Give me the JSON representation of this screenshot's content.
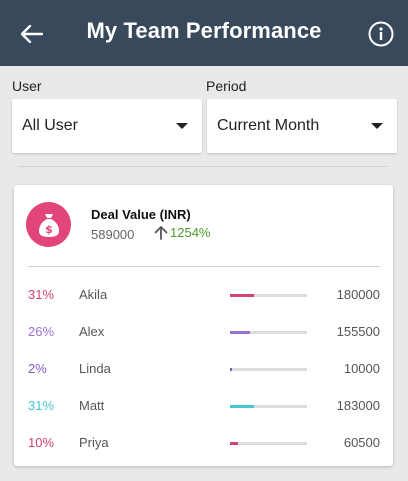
{
  "header": {
    "title": "My Team Performance",
    "back_icon": "arrow-left-icon",
    "info_icon": "info-circle-icon",
    "background": "#37495a"
  },
  "filters": {
    "user": {
      "label": "User",
      "value": "All User"
    },
    "period": {
      "label": "Period",
      "value": "Current Month"
    }
  },
  "metric": {
    "icon": "money-bag-icon",
    "icon_color": "#e1457a",
    "title": "Deal Value (INR)",
    "value": "589000",
    "change": "1254%",
    "change_direction": "up",
    "change_color": "#4b9a2a"
  },
  "team": [
    {
      "percent": "31%",
      "name": "Akila",
      "amount": "180000",
      "share": 0.31,
      "color": "#d14372"
    },
    {
      "percent": "26%",
      "name": "Alex",
      "amount": "155500",
      "share": 0.26,
      "color": "#9a6fd0"
    },
    {
      "percent": "2%",
      "name": "Linda",
      "amount": "10000",
      "share": 0.02,
      "color": "#7e5cc4"
    },
    {
      "percent": "31%",
      "name": "Matt",
      "amount": "183000",
      "share": 0.31,
      "color": "#46c6cf"
    },
    {
      "percent": "10%",
      "name": "Priya",
      "amount": "60500",
      "share": 0.1,
      "color": "#d14372"
    }
  ]
}
